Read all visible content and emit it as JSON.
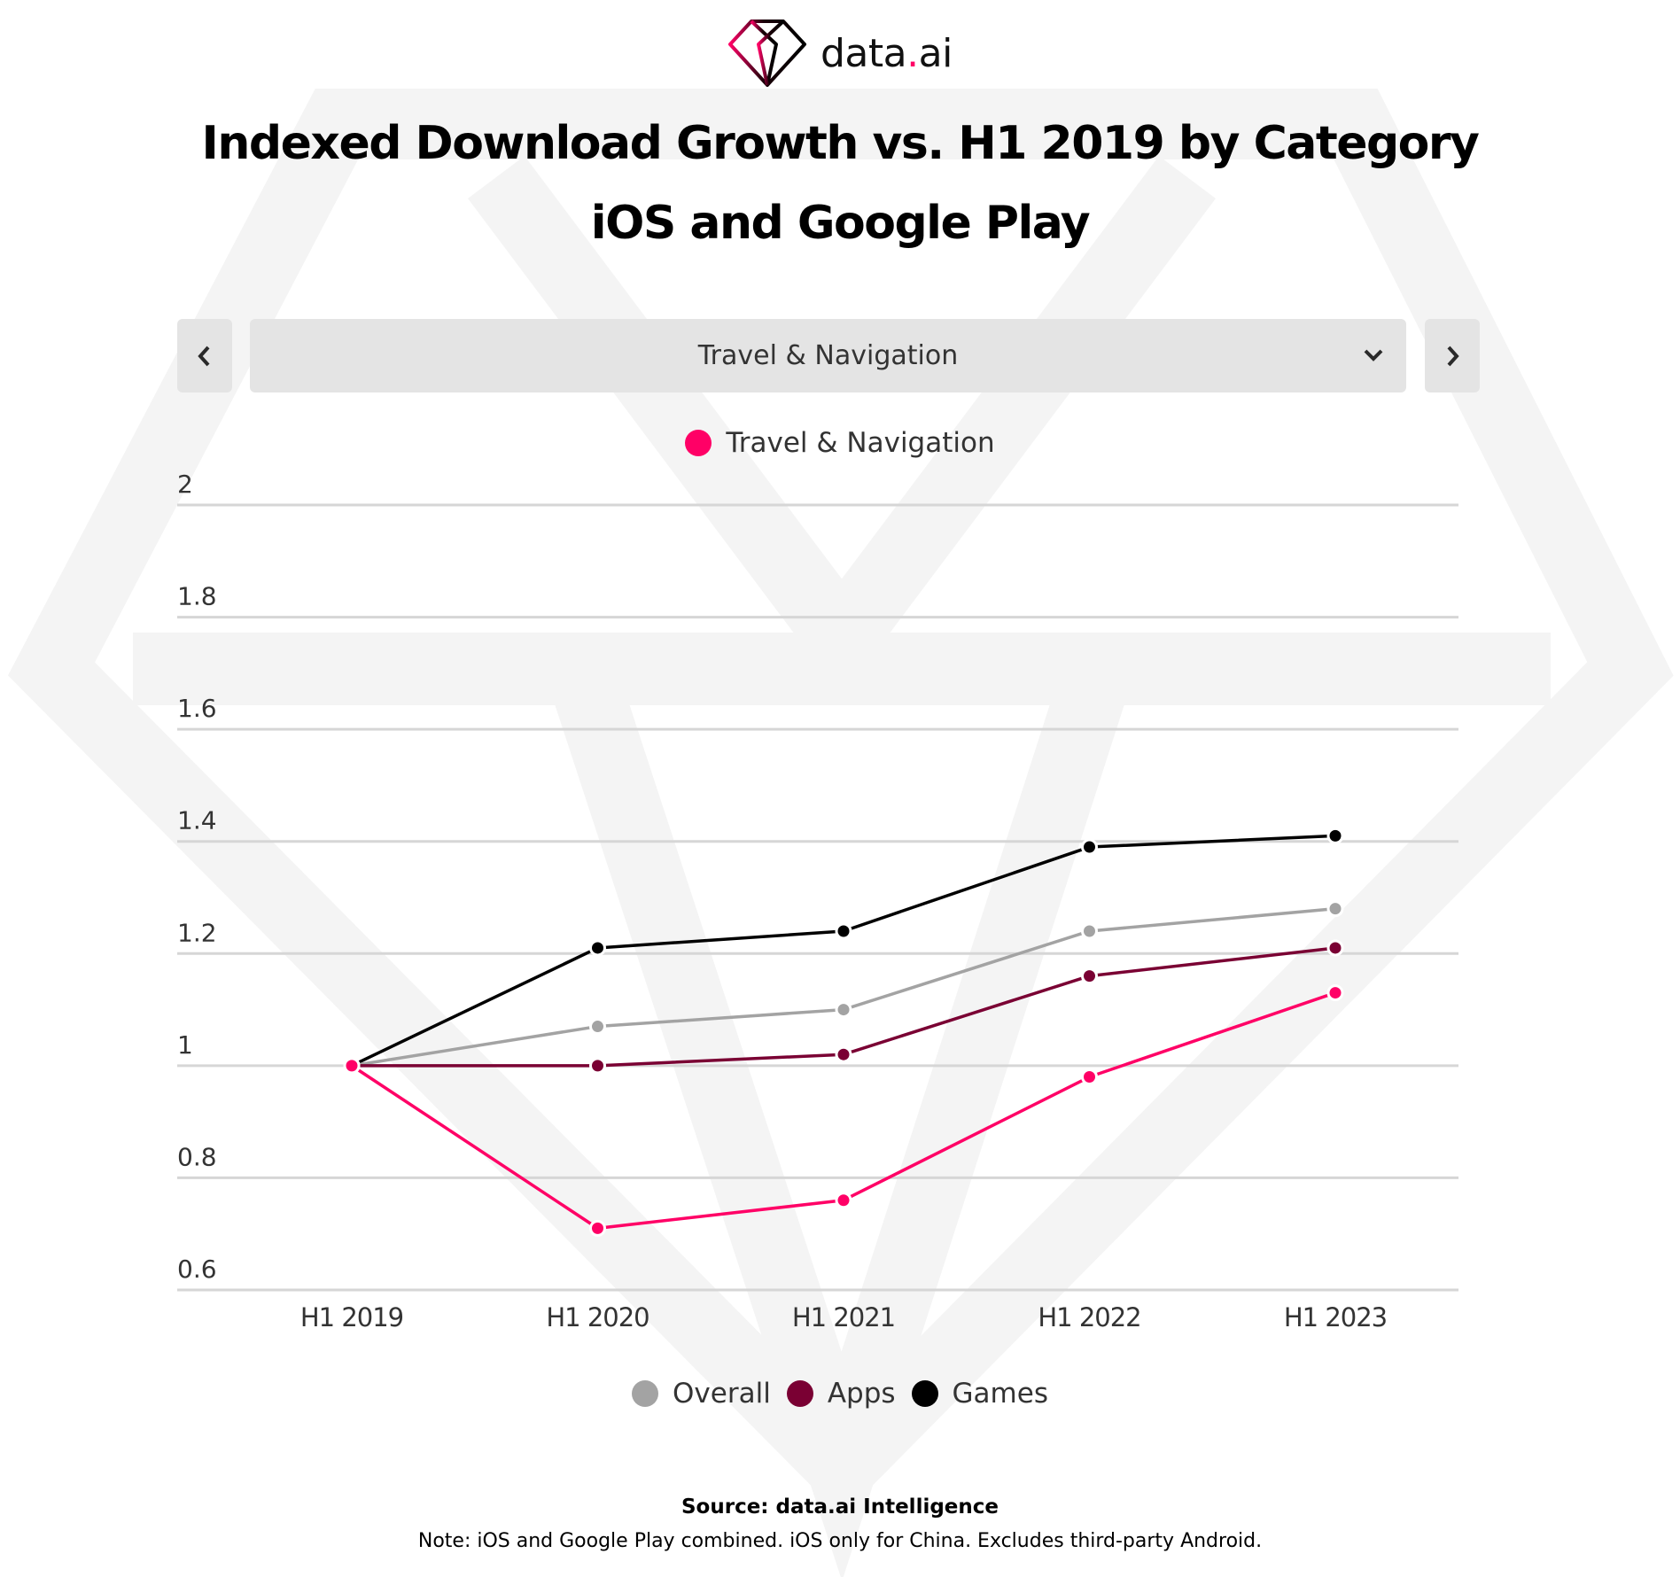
{
  "brand": {
    "name_part1": "data",
    "name_dot": ".",
    "name_part2": "ai",
    "accent_color": "#ff0066"
  },
  "header": {
    "title_line1": "Indexed Download Growth vs. H1 2019 by Category",
    "title_line2": "iOS and Google Play"
  },
  "controls": {
    "prev_icon": "chevron-left-icon",
    "next_icon": "chevron-right-icon",
    "dropdown_selected": "Travel & Navigation",
    "dropdown_icon": "chevron-down-icon"
  },
  "chart_data": {
    "type": "line",
    "title": "Indexed Download Growth vs. H1 2019 by Category",
    "subtitle": "iOS and Google Play",
    "xlabel": "",
    "ylabel": "",
    "x": [
      "H1 2019",
      "H1 2020",
      "H1 2021",
      "H1 2022",
      "H1 2023"
    ],
    "ylim": [
      0.6,
      2.0
    ],
    "yticks": [
      2,
      1.8,
      1.6,
      1.4,
      1.2,
      1,
      0.8,
      0.6
    ],
    "ytick_labels": [
      "2",
      "1.8",
      "1.6",
      "1.4",
      "1.2",
      "1",
      "0.8",
      "0.6"
    ],
    "grid": true,
    "legend_top": [
      {
        "name": "Travel & Navigation",
        "color": "#ff0066"
      }
    ],
    "legend_bottom": [
      {
        "name": "Overall",
        "color": "#a3a3a3"
      },
      {
        "name": "Apps",
        "color": "#7a0033"
      },
      {
        "name": "Games",
        "color": "#000000"
      }
    ],
    "series": [
      {
        "name": "Games",
        "color": "#000000",
        "values": [
          1.0,
          1.21,
          1.24,
          1.39,
          1.41
        ]
      },
      {
        "name": "Overall",
        "color": "#a3a3a3",
        "values": [
          1.0,
          1.07,
          1.1,
          1.24,
          1.28
        ]
      },
      {
        "name": "Apps",
        "color": "#7a0033",
        "values": [
          1.0,
          1.0,
          1.02,
          1.16,
          1.21
        ]
      },
      {
        "name": "Travel & Navigation",
        "color": "#ff0066",
        "values": [
          1.0,
          0.71,
          0.76,
          0.98,
          1.13
        ]
      }
    ]
  },
  "footer": {
    "source": "Source: data.ai Intelligence",
    "note": "Note: iOS and Google Play combined. iOS only for China. Excludes third-party Android."
  }
}
